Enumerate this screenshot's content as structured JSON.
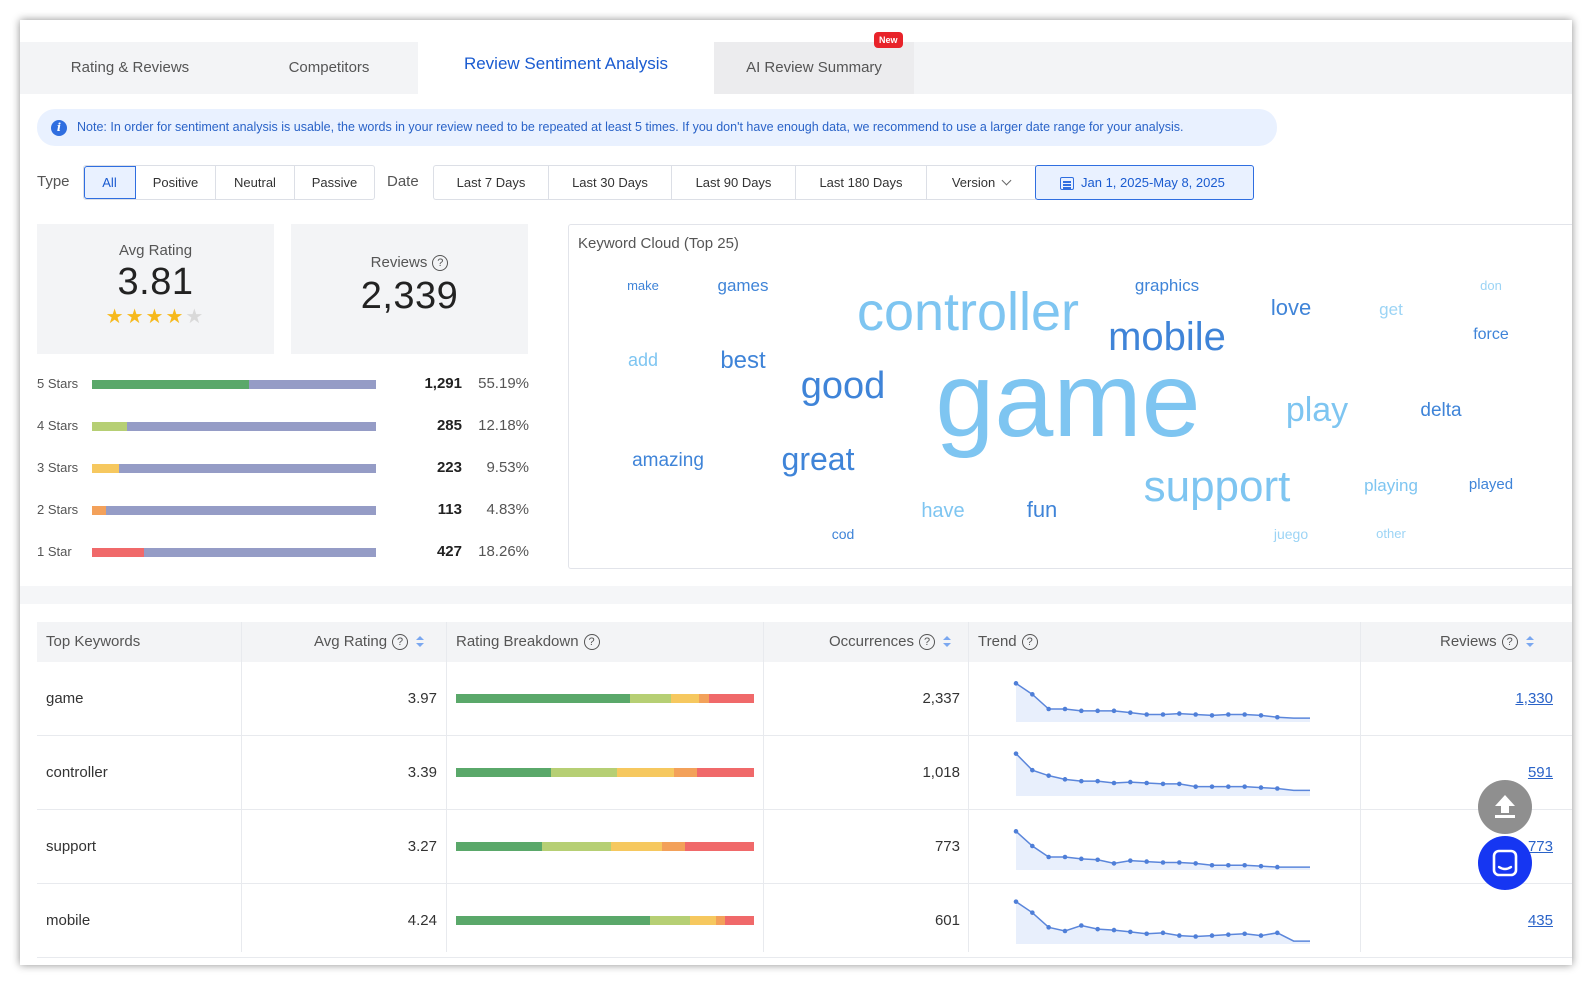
{
  "tabs": [
    {
      "label": "Rating & Reviews"
    },
    {
      "label": "Competitors"
    },
    {
      "label": "Review Sentiment Analysis"
    },
    {
      "label": "AI Review Summary",
      "badge": "New"
    }
  ],
  "note": {
    "text": "Note: In order for sentiment analysis is usable, the words in your review need to be repeated at least 5 times. If you don't have enough data, we recommend to use a larger date range for your analysis."
  },
  "filters": {
    "type_label": "Type",
    "types": [
      "All",
      "Positive",
      "Neutral",
      "Passive"
    ],
    "date_label": "Date",
    "dates": [
      "Last 7 Days",
      "Last 30 Days",
      "Last 90 Days",
      "Last 180 Days"
    ],
    "version_label": "Version",
    "date_range": "Jan 1, 2025-May 8, 2025"
  },
  "stats": {
    "avg_rating_label": "Avg Rating",
    "avg_rating": "3.81",
    "stars_filled": 4,
    "reviews_label": "Reviews",
    "reviews": "2,339"
  },
  "star_breakdown": [
    {
      "label": "5 Stars",
      "count": "1,291",
      "pct": "55.19%",
      "fraction": 0.5519,
      "color": "#5aa86a"
    },
    {
      "label": "4 Stars",
      "count": "285",
      "pct": "12.18%",
      "fraction": 0.1218,
      "color": "#b6cf74"
    },
    {
      "label": "3 Stars",
      "count": "223",
      "pct": "9.53%",
      "fraction": 0.0953,
      "color": "#f6c85f"
    },
    {
      "label": "2 Stars",
      "count": "113",
      "pct": "4.83%",
      "fraction": 0.0483,
      "color": "#f3a15a"
    },
    {
      "label": "1 Star",
      "count": "427",
      "pct": "18.26%",
      "fraction": 0.1826,
      "color": "#f0696a"
    }
  ],
  "keyword_cloud": {
    "title": "Keyword Cloud (Top 25)",
    "words": [
      "game",
      "controller",
      "mobile",
      "good",
      "support",
      "great",
      "play",
      "love",
      "graphics",
      "games",
      "best",
      "make",
      "add",
      "amazing",
      "have",
      "fun",
      "cod",
      "get",
      "don",
      "force",
      "delta",
      "playing",
      "played",
      "juego",
      "other"
    ]
  },
  "table": {
    "headers": {
      "keyword": "Top Keywords",
      "avg_rating": "Avg Rating",
      "breakdown": "Rating Breakdown",
      "occurrences": "Occurrences",
      "trend": "Trend",
      "reviews": "Reviews"
    },
    "rows": [
      {
        "keyword": "game",
        "avg": "3.97",
        "breakdown": [
          0.585,
          0.135,
          0.095,
          0.035,
          0.15
        ],
        "occurrences": "2,337",
        "trend": [
          20,
          14,
          6,
          6,
          5,
          5,
          5,
          4,
          3,
          3,
          3.5,
          3,
          2.5,
          3,
          3,
          2.5,
          1.5,
          1,
          1
        ],
        "reviews": "1,330"
      },
      {
        "keyword": "controller",
        "avg": "3.39",
        "breakdown": [
          0.32,
          0.22,
          0.19,
          0.08,
          0.19
        ],
        "occurrences": "1,018",
        "trend": [
          22,
          13,
          10,
          8,
          7,
          7,
          6,
          6.5,
          6,
          5.5,
          5.5,
          4,
          4,
          4,
          4,
          3.5,
          3,
          2,
          2
        ],
        "reviews": "591"
      },
      {
        "keyword": "support",
        "avg": "3.27",
        "breakdown": [
          0.29,
          0.23,
          0.17,
          0.08,
          0.23
        ],
        "occurrences": "773",
        "trend": [
          20,
          12,
          6,
          6,
          5,
          4.5,
          2.5,
          4,
          3.5,
          3,
          3,
          2.5,
          1.5,
          1.5,
          1.5,
          1,
          0.5,
          0.5,
          0.5
        ],
        "reviews": "773"
      },
      {
        "keyword": "mobile",
        "avg": "4.24",
        "breakdown": [
          0.67,
          0.14,
          0.09,
          0.03,
          0.1
        ],
        "occurrences": "601",
        "trend": [
          22,
          16,
          8,
          6,
          9,
          7,
          6.5,
          5.5,
          4.5,
          5,
          3.5,
          3,
          3.5,
          4,
          4.5,
          3.5,
          5,
          0.5,
          0.5
        ],
        "reviews": "435"
      }
    ]
  },
  "colors": {
    "accent": "#1a5bd0",
    "rating_5": "#5aa86a",
    "rating_4": "#b6cf74",
    "rating_3": "#f6c85f",
    "rating_2": "#f3a15a",
    "rating_1": "#f0696a",
    "bar_rest": "#959cc6"
  }
}
